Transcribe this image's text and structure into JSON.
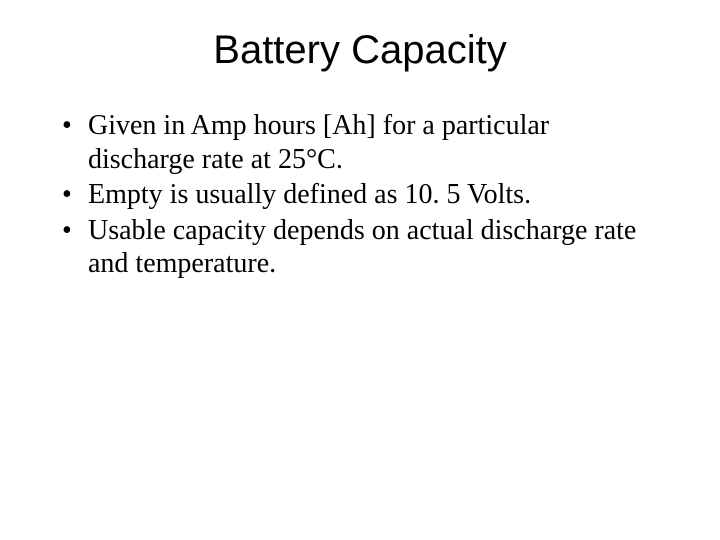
{
  "slide": {
    "title": "Battery Capacity",
    "title_font": "Arial",
    "title_fontsize": 40,
    "body_font": "Times New Roman",
    "body_fontsize": 28,
    "background_color": "#ffffff",
    "text_color": "#000000",
    "bullets": [
      {
        "marker": "•",
        "text": "Given in Amp hours [Ah] for a particular discharge rate at 25°C."
      },
      {
        "marker": "•",
        "text": "Empty is usually defined as 10. 5 Volts."
      },
      {
        "marker": "•",
        "text": "Usable capacity depends on actual discharge rate and temperature."
      }
    ]
  }
}
